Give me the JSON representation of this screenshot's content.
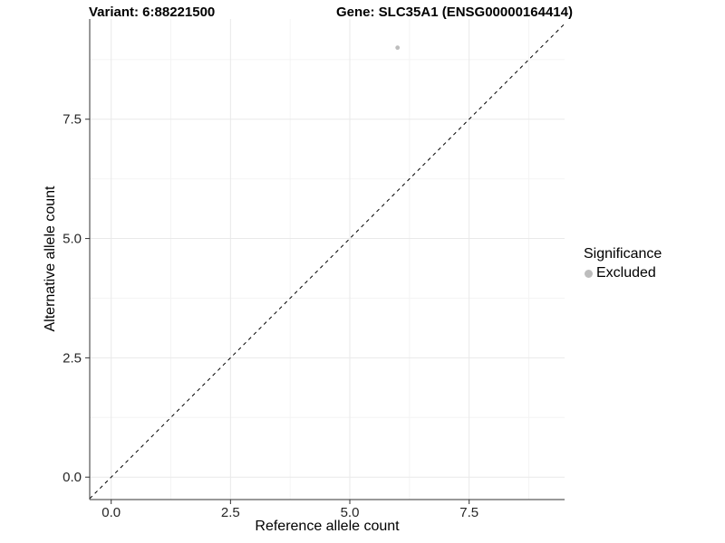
{
  "chart_data": {
    "type": "scatter",
    "title_left": "Variant: 6:88221500",
    "title_right": "Gene: SLC35A1 (ENSG00000164414)",
    "xlabel": "Reference allele count",
    "ylabel": "Alternative allele count",
    "xlim": [
      -0.45,
      9.5
    ],
    "ylim": [
      -0.47,
      9.6
    ],
    "x_ticks": [
      0,
      2.5,
      5,
      7.5
    ],
    "x_tick_labels": [
      "0.0",
      "2.5",
      "5.0",
      "7.5"
    ],
    "y_ticks": [
      0,
      2.5,
      5,
      7.5
    ],
    "y_tick_labels": [
      "0.0",
      "2.5",
      "5.0",
      "7.5"
    ],
    "x_minor_ticks": [
      1.25,
      3.75,
      6.25,
      8.75
    ],
    "y_minor_ticks": [
      1.25,
      3.75,
      6.25,
      8.75
    ],
    "grid": "major+minor",
    "points": [
      {
        "x": 6,
        "y": 9,
        "group": "Excluded"
      }
    ],
    "identity_line": {
      "slope": 1,
      "intercept": 0,
      "style": "dashed",
      "color": "#000000"
    },
    "legend": {
      "title": "Significance",
      "position": "right",
      "entries": [
        {
          "label": "Excluded",
          "color": "#bdbdbd",
          "marker": "circle"
        }
      ]
    },
    "colors": {
      "point": "#bdbdbd",
      "grid_major": "#e9e9e9",
      "grid_minor": "#f4f4f4",
      "axis": "#333333",
      "tick_label": "#262626"
    }
  }
}
